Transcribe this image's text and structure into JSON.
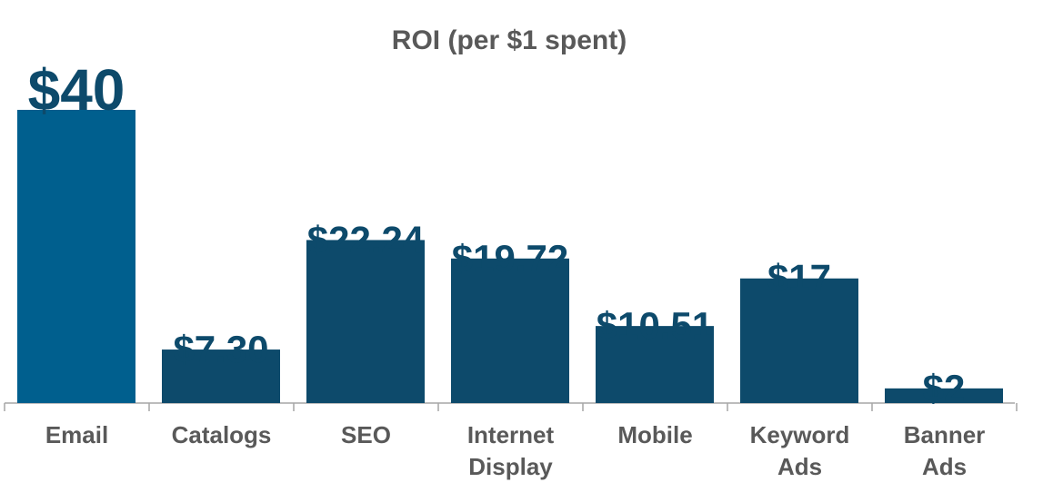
{
  "chart_data": {
    "type": "bar",
    "title": "ROI (per $1 spent)",
    "xlabel": "",
    "ylabel": "",
    "ylim": [
      0,
      40
    ],
    "grid": false,
    "legend": "none",
    "categories": [
      "Email",
      "Catalogs",
      "SEO",
      "Internet Display",
      "Mobile",
      "Keyword Ads",
      "Banner Ads"
    ],
    "category_lines": [
      [
        "Email"
      ],
      [
        "Catalogs"
      ],
      [
        "SEO"
      ],
      [
        "Internet",
        "Display"
      ],
      [
        "Mobile"
      ],
      [
        "Keyword",
        "Ads"
      ],
      [
        "Banner",
        "Ads"
      ]
    ],
    "values": [
      40,
      7.3,
      22.24,
      19.72,
      10.51,
      17,
      2
    ],
    "data_labels": [
      "$40",
      "$7.30",
      "$22.24",
      "$19.72",
      "$10.51",
      "$17",
      "$2"
    ],
    "colors": {
      "highlight": "#005f8e",
      "bar": "#0d4a6b",
      "label": "#0d4a6b",
      "title": "#595959",
      "tick_label": "#595959",
      "axis": "#a6a6a6"
    },
    "highlight_index": 0
  }
}
